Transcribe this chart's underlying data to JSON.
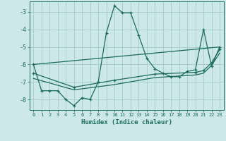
{
  "xlabel": "Humidex (Indice chaleur)",
  "bg_color": "#cce8e8",
  "line_color": "#1a6b5a",
  "grid_color": "#aacfcf",
  "xlim": [
    -0.5,
    23.5
  ],
  "ylim": [
    -8.6,
    -2.4
  ],
  "yticks": [
    -8,
    -7,
    -6,
    -5,
    -4,
    -3
  ],
  "xticks": [
    0,
    1,
    2,
    3,
    4,
    5,
    6,
    7,
    8,
    9,
    10,
    11,
    12,
    13,
    14,
    15,
    16,
    17,
    18,
    19,
    20,
    21,
    22,
    23
  ],
  "line1_x": [
    0,
    1,
    2,
    3,
    4,
    5,
    6,
    7,
    8,
    9,
    10,
    11,
    12,
    13,
    14,
    15,
    16,
    17,
    18,
    19,
    20,
    21,
    22,
    23
  ],
  "line1_y": [
    -6.0,
    -7.5,
    -7.5,
    -7.5,
    -8.0,
    -8.35,
    -7.9,
    -8.0,
    -7.0,
    -4.2,
    -2.65,
    -3.05,
    -3.05,
    -4.35,
    -5.65,
    -6.25,
    -6.5,
    -6.7,
    -6.7,
    -6.4,
    -6.3,
    -4.0,
    -6.1,
    -5.0
  ],
  "line2_x": [
    0,
    23
  ],
  "line2_y": [
    -6.0,
    -5.0
  ],
  "line3_x": [
    0,
    5,
    10,
    15,
    20,
    21,
    22,
    23
  ],
  "line3_y": [
    -6.5,
    -7.3,
    -6.9,
    -6.55,
    -6.45,
    -6.35,
    -5.9,
    -5.15
  ],
  "line4_x": [
    0,
    5,
    10,
    15,
    20,
    21,
    22,
    23
  ],
  "line4_y": [
    -6.8,
    -7.45,
    -7.15,
    -6.75,
    -6.6,
    -6.5,
    -6.05,
    -5.35
  ]
}
